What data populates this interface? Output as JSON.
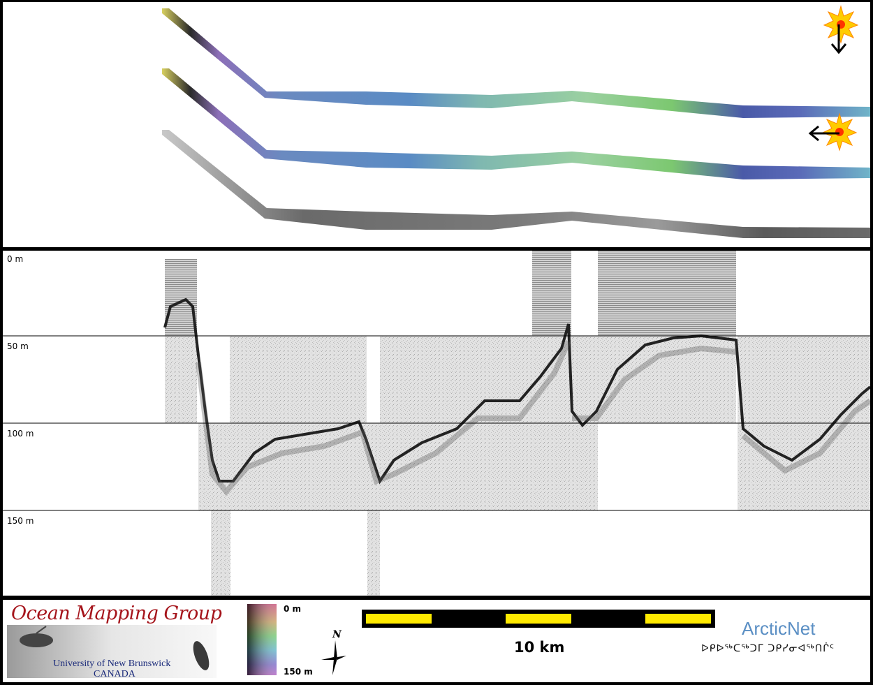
{
  "depth_labels": [
    "0 m",
    "50 m",
    "100 m",
    "150 m"
  ],
  "logo": {
    "title": "Ocean Mapping Group",
    "university": "University of New Brunswick",
    "country": "CANADA"
  },
  "colorbar": {
    "top_label": "0 m",
    "bottom_label": "150 m"
  },
  "scale_bar": {
    "label": "10 km",
    "segments": 5,
    "colors": [
      "#ffea00",
      "#000000"
    ]
  },
  "north_arrow": {
    "label": "N"
  },
  "arcticnet": {
    "name": "ArcticNet",
    "inuktitut": "ᐅᑭᐅᖅᑕᖅᑐᒥ ᑐᑭᓯᓂᐊᖅᑎᒌᑦ"
  },
  "icons": [
    "sun-illumination-icon",
    "north-arrow-icon"
  ],
  "colors": {
    "logo_red": "#a5141b",
    "logo_blue": "#1a2a7a",
    "arcticnet_blue": "#5b8fc4"
  }
}
